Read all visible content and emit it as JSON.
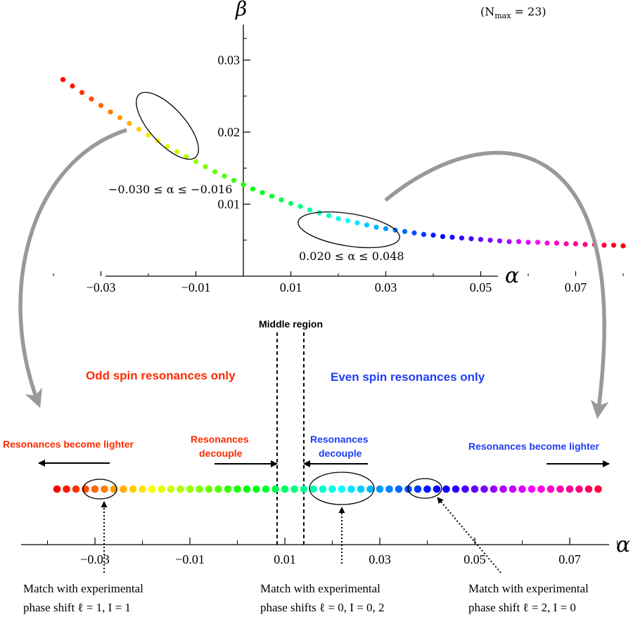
{
  "colors": {
    "red": "#ff2a00",
    "blue": "#1f3df5",
    "arrow_gray": "#999999"
  },
  "top_plot": {
    "y_axis_label": "β",
    "x_axis_label": "α",
    "nmax_note": "(N_max = 23)",
    "y_ticks": [
      "0.03",
      "0.02",
      "0.01"
    ],
    "x_ticks": [
      "−0.03",
      "−0.01",
      "0.01",
      "0.03",
      "0.05",
      "0.07"
    ],
    "ellipse_left_label": "−0.030 ≤ α ≤ −0.016",
    "ellipse_right_label": "0.020 ≤ α ≤ 0.048"
  },
  "bottom": {
    "middle_region": "Middle region",
    "odd_spin": "Odd spin resonances only",
    "even_spin": "Even spin resonances only",
    "lighter_left": "Resonances become lighter",
    "lighter_right": "Resonances become lighter",
    "decouple_left": [
      "Resonances",
      "decouple"
    ],
    "decouple_right": [
      "Resonances",
      "decouple"
    ],
    "x_axis_label": "α",
    "x_ticks": [
      "−0.03",
      "−0.01",
      "0.01",
      "0.03",
      "0.05",
      "0.07"
    ],
    "match_left": [
      "Match with experimental",
      "phase shift ℓ = 1, I = 1"
    ],
    "match_mid": [
      "Match with experimental",
      "phase shifts ℓ = 0, I = 0, 2"
    ],
    "match_right": [
      "Match with experimental",
      "phase shift ℓ = 2, I = 0"
    ]
  },
  "chart_data": [
    {
      "type": "scatter",
      "title": "",
      "xlabel": "α",
      "ylabel": "β",
      "xlim": [
        -0.042,
        0.085
      ],
      "ylim": [
        0,
        0.035
      ],
      "x_ticks": [
        -0.03,
        -0.01,
        0.01,
        0.03,
        0.05,
        0.07
      ],
      "y_ticks": [
        0.01,
        0.02,
        0.03
      ],
      "color_encoding": "hue gradient from red (α = −0.038) through yellow, green, cyan, blue, magenta to red (α = 0.080)",
      "series": [
        {
          "x_start": -0.038,
          "x_step": 0.002,
          "count": 60,
          "y": [
            0.0273,
            0.0264,
            0.0255,
            0.0246,
            0.0237,
            0.0228,
            0.022,
            0.0212,
            0.0204,
            0.0196,
            0.0188,
            0.018,
            0.0173,
            0.0166,
            0.0159,
            0.0152,
            0.0145,
            0.0139,
            0.0133,
            0.0127,
            0.0121,
            0.0116,
            0.0111,
            0.0106,
            0.0101,
            0.0097,
            0.0092,
            0.0088,
            0.0084,
            0.008,
            0.0077,
            0.0074,
            0.0071,
            0.0068,
            0.0066,
            0.0064,
            0.0062,
            0.006,
            0.0058,
            0.0057,
            0.0055,
            0.0054,
            0.0053,
            0.0052,
            0.0051,
            0.005,
            0.0049,
            0.0048,
            0.0048,
            0.0047,
            0.0047,
            0.0046,
            0.0046,
            0.0045,
            0.0045,
            0.0044,
            0.0044,
            0.0043,
            0.0043,
            0.0042
          ]
        }
      ],
      "annotations": [
        "−0.030 ≤ α ≤ −0.016",
        "0.020 ≤ α ≤ 0.048",
        "(N_max = 23)"
      ]
    },
    {
      "type": "scatter",
      "title": "",
      "xlabel": "α",
      "ylabel": "",
      "xlim": [
        -0.042,
        0.085
      ],
      "x_ticks": [
        -0.03,
        -0.01,
        0.01,
        0.03,
        0.05,
        0.07
      ],
      "series": [
        {
          "x_start": -0.038,
          "x_step": 0.002,
          "count": 60,
          "color_encoding": "same hue gradient as top plot"
        }
      ],
      "regions": [
        {
          "label": "Odd spin resonances only",
          "x_max": 0.012
        },
        {
          "label": "Middle region",
          "x_range": [
            0.012,
            0.018
          ]
        },
        {
          "label": "Even spin resonances only",
          "x_min": 0.018
        }
      ],
      "highlighted_ranges": [
        {
          "x_range": [
            -0.028,
            -0.024
          ],
          "note": "Match with experimental phase shift ℓ = 1, I = 1"
        },
        {
          "x_range": [
            0.02,
            0.032
          ],
          "note": "Match with experimental phase shifts ℓ = 0, I = 0, 2"
        },
        {
          "x_range": [
            0.04,
            0.044
          ],
          "note": "Match with experimental phase shift ℓ = 2, I = 0"
        }
      ]
    }
  ]
}
